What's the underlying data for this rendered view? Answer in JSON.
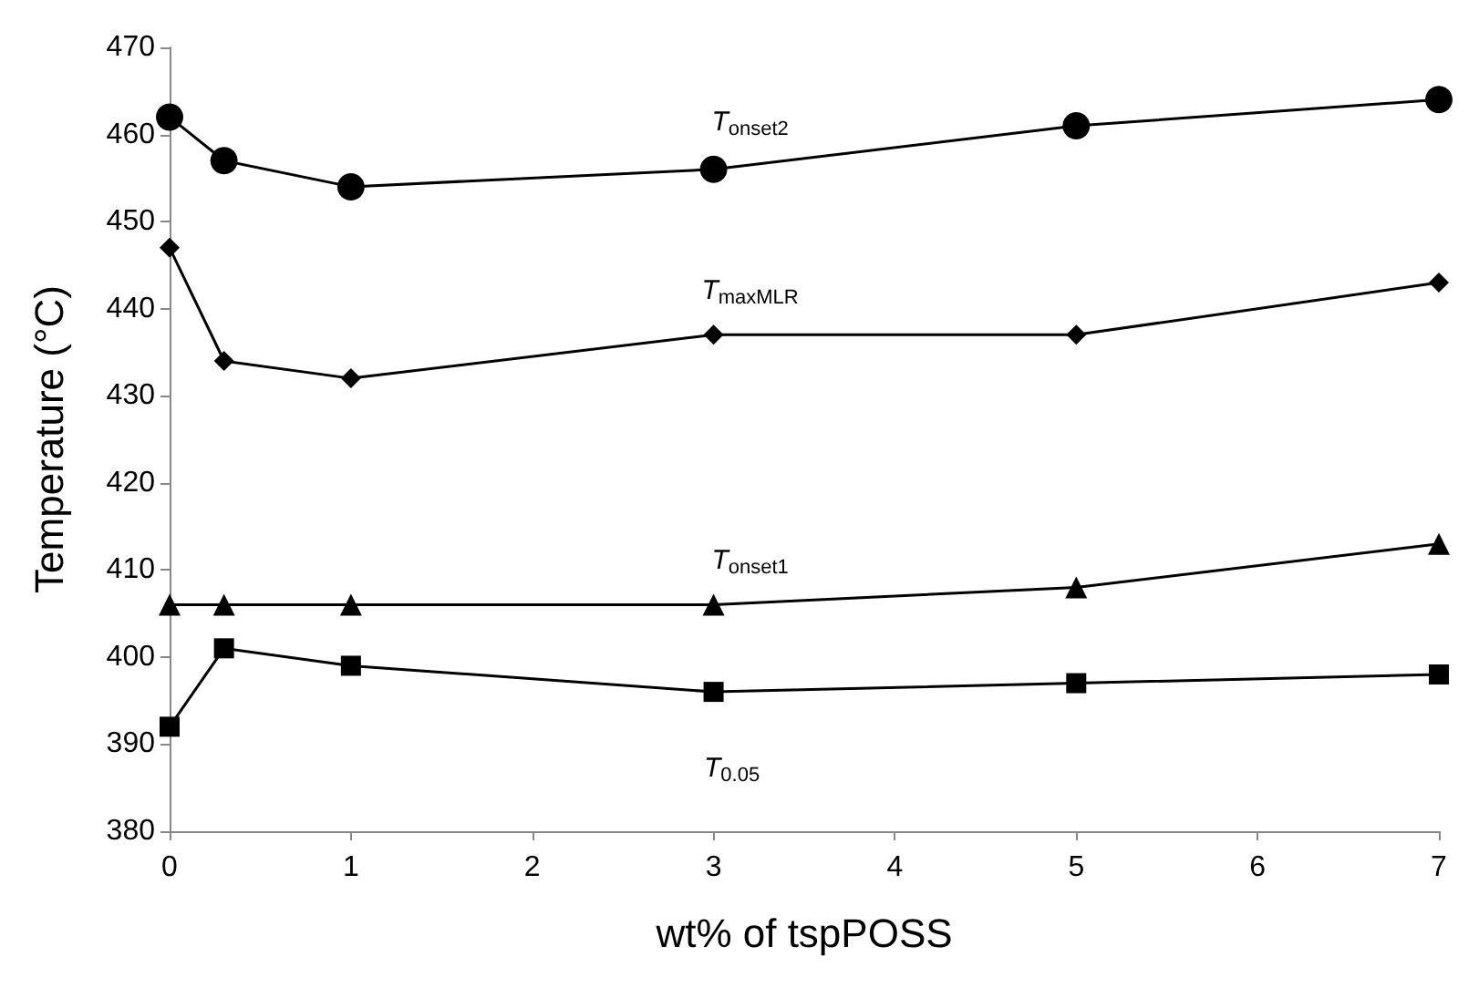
{
  "chart_data": {
    "type": "line",
    "xlabel": "wt% of tspPOSS",
    "ylabel": "Temperature (°C)",
    "x": [
      0,
      0.3,
      1,
      3,
      5,
      7
    ],
    "series": [
      {
        "name": "T$_{onset2}$",
        "color": "#000000",
        "marker": "circle",
        "values": [
          462,
          457,
          454,
          456,
          461,
          464
        ]
      },
      {
        "name": "T$_{maxMLR}$",
        "color": "#000000",
        "marker": "diamond",
        "values": [
          447,
          434,
          432,
          437,
          437,
          443
        ]
      },
      {
        "name": "T$_{onset1}$",
        "color": "#000000",
        "marker": "triangle",
        "values": [
          406,
          406,
          406,
          406,
          408,
          413
        ]
      },
      {
        "name": "T$_{0.05}$",
        "color": "#000000",
        "marker": "square",
        "values": [
          392,
          401,
          399,
          396,
          397,
          398
        ]
      }
    ],
    "xlim": [
      0,
      7
    ],
    "xticks": [
      0,
      1,
      2,
      3,
      4,
      5,
      6,
      7
    ],
    "ylim": [
      380,
      470
    ],
    "yticks": [
      380,
      390,
      400,
      410,
      420,
      430,
      440,
      450,
      460,
      470
    ],
    "grid": false,
    "legend": false,
    "line_style": "solid"
  }
}
